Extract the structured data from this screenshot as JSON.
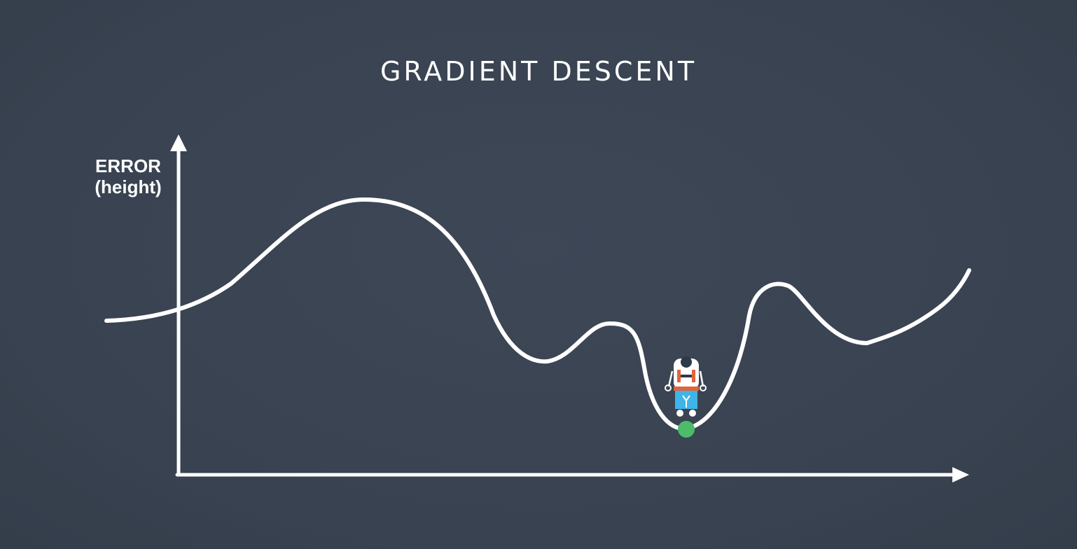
{
  "title": "GRADIENT DESCENT",
  "y_axis": {
    "line1": "ERROR",
    "line2": "(height)"
  },
  "colors": {
    "background": "#3a4452",
    "curve": "#ffffff",
    "minimum_marker": "#4cbb6a",
    "robot_body": "#ffffff",
    "robot_accent_red": "#e0643c",
    "robot_accent_blue": "#3fb4e8",
    "robot_dark": "#2f3a48"
  },
  "icons": {
    "robot": "robot-icon",
    "marker": "green-dot-icon"
  }
}
